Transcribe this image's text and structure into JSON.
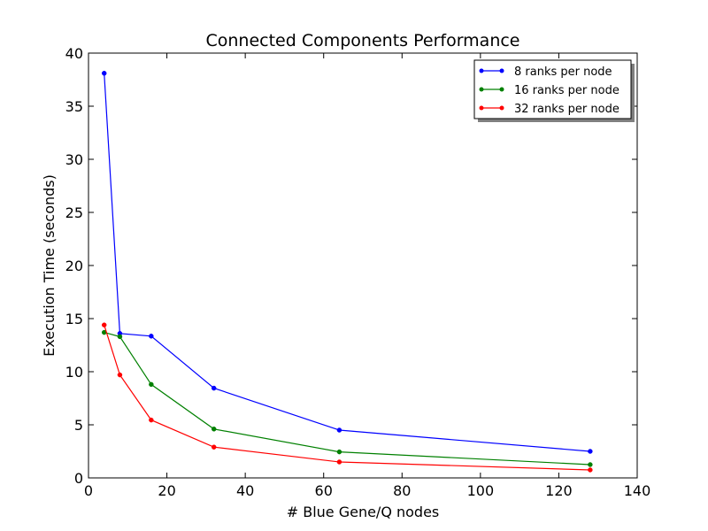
{
  "chart_data": {
    "type": "line",
    "title": "Connected Components Performance",
    "xlabel": "# Blue Gene/Q nodes",
    "ylabel": "Execution Time (seconds)",
    "xlim": [
      0,
      140
    ],
    "ylim": [
      0,
      40
    ],
    "xticks": [
      0,
      20,
      40,
      60,
      80,
      100,
      120,
      140
    ],
    "yticks": [
      0,
      5,
      10,
      15,
      20,
      25,
      30,
      35,
      40
    ],
    "grid": false,
    "legend_position": "top-right",
    "x": [
      4,
      8,
      16,
      32,
      64,
      128
    ],
    "series": [
      {
        "name": "8 ranks per node",
        "color": "#0000ff",
        "values": [
          38.1,
          13.6,
          13.35,
          8.45,
          4.5,
          2.5
        ]
      },
      {
        "name": "16 ranks per node",
        "color": "#008000",
        "values": [
          13.7,
          13.3,
          8.8,
          4.6,
          2.45,
          1.25
        ]
      },
      {
        "name": "32 ranks per node",
        "color": "#ff0000",
        "values": [
          14.4,
          9.7,
          5.45,
          2.9,
          1.5,
          0.75
        ]
      }
    ]
  }
}
